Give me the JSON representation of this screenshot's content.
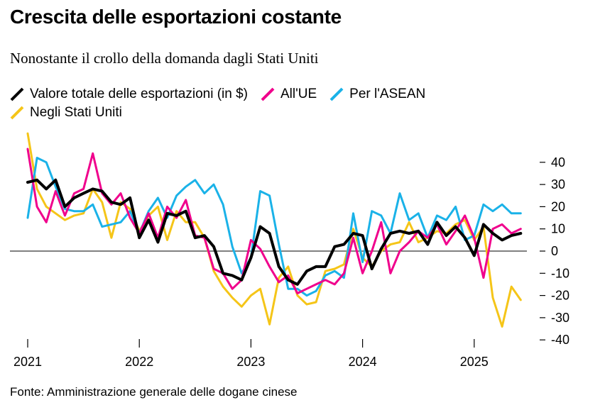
{
  "title": "Crescita delle esportazioni costante",
  "subtitle": "Nonostante il crollo della domanda dagli Stati Uniti",
  "source": "Fonte: Amministrazione generale delle dogane cinese",
  "chart_data": {
    "type": "line",
    "x_start": "2021-01",
    "x_label_years": [
      "2021",
      "2022",
      "2023",
      "2024",
      "2025"
    ],
    "ylim": [
      -40,
      40
    ],
    "yticks": [
      {
        "value": 40,
        "label": "40"
      },
      {
        "value": 30,
        "label": "30"
      },
      {
        "value": 20,
        "label": "20"
      },
      {
        "value": 10,
        "label": "10"
      },
      {
        "value": 0,
        "label": "0"
      },
      {
        "value": -10,
        "label": "-10"
      },
      {
        "value": -20,
        "label": "-20"
      },
      {
        "value": -30,
        "label": "-30"
      },
      {
        "value": -40,
        "label": "-40"
      }
    ],
    "zero_line": true,
    "legend_position": "top-left",
    "series": [
      {
        "name": "Negli Stati Uniti",
        "color": "#f5c518",
        "values": [
          53,
          28,
          20,
          17,
          14,
          16,
          17,
          28,
          22,
          6,
          22,
          19,
          9,
          16,
          20,
          5,
          18,
          13,
          13,
          6,
          -9,
          -16,
          -21,
          -25,
          -20,
          -17,
          -33,
          -12,
          -7,
          -20,
          -24,
          -23,
          -9,
          -8,
          -6,
          10,
          -3,
          -7,
          0,
          3,
          4,
          13,
          4,
          6,
          9,
          8,
          12,
          14,
          5,
          11,
          -21,
          -34,
          -16,
          -22
        ]
      },
      {
        "name": "Per l'ASEAN",
        "color": "#1ab2e8",
        "values": [
          15,
          42,
          40,
          29,
          19,
          18,
          18,
          21,
          11,
          12,
          13,
          18,
          8,
          18,
          24,
          15,
          25,
          29,
          32,
          26,
          30,
          21,
          2,
          -10,
          -3,
          27,
          25,
          3,
          -17,
          -17,
          -20,
          -18,
          -11,
          -9,
          -12,
          17,
          -5,
          18,
          16,
          8,
          26,
          14,
          17,
          6,
          16,
          14,
          20,
          5,
          7,
          21,
          18,
          21,
          17,
          17
        ]
      },
      {
        "name": "All'UE",
        "color": "#f0008c",
        "values": [
          46,
          20,
          13,
          27,
          16,
          26,
          28,
          44,
          26,
          21,
          26,
          15,
          8,
          17,
          6,
          20,
          15,
          23,
          7,
          6,
          -8,
          -10,
          -17,
          -13,
          5,
          1,
          -7,
          -14,
          -11,
          -19,
          -17,
          -15,
          -13,
          -15,
          -10,
          6,
          -10,
          0,
          13,
          -10,
          0,
          4,
          9,
          6,
          12,
          3,
          9,
          16,
          6,
          -12,
          10,
          12,
          8,
          10
        ]
      },
      {
        "name": "Valore totale delle esportazioni (in $)",
        "color": "#000000",
        "values": [
          31,
          32,
          28,
          32,
          20,
          24,
          26,
          28,
          27,
          22,
          21,
          24,
          6,
          14,
          4,
          17,
          16,
          18,
          6,
          7,
          2,
          -10,
          -11,
          -13,
          -3,
          11,
          8,
          -7,
          -13,
          -15,
          -9,
          -7,
          -7,
          2,
          3,
          8,
          7,
          -8,
          1,
          8,
          9,
          8,
          9,
          3,
          13,
          7,
          11,
          6,
          -2,
          12,
          8,
          5,
          7,
          8
        ]
      }
    ]
  }
}
